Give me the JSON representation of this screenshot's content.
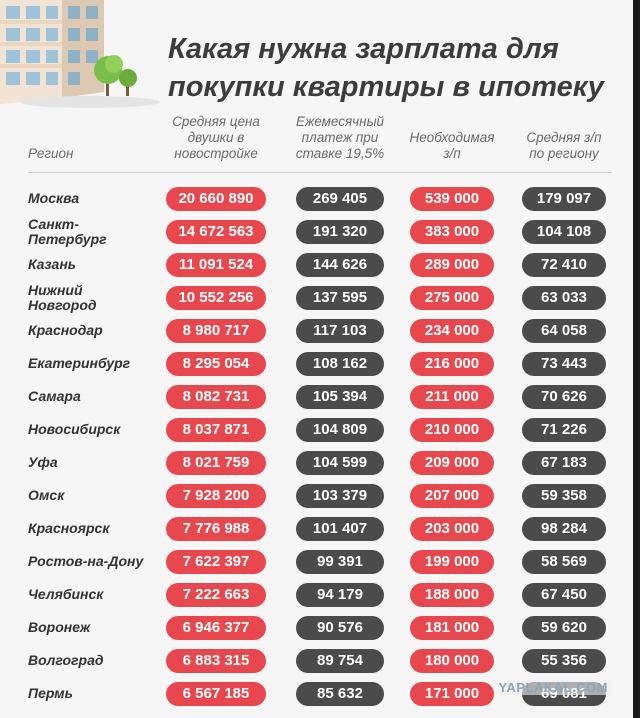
{
  "title_line1": "Какая нужна зарплата для",
  "title_line2": "покупки квартиры в ипотеку",
  "headers": {
    "region": "Регион",
    "price": [
      "Средняя цена",
      "двушки в",
      "новостройке"
    ],
    "payment": [
      "Ежемесячный",
      "платеж при",
      "ставке 19,5%"
    ],
    "required": [
      "Необходимая",
      "з/п"
    ],
    "avg_salary": [
      "Средняя з/п",
      "по региону"
    ]
  },
  "watermark": "YAPLAKAL.COM",
  "colors": {
    "red": "#e8484d",
    "dark": "#4b4b4b",
    "title": "#3c3c3c"
  },
  "chart_data": {
    "type": "table",
    "columns": [
      "Регион",
      "Средняя цена двушки в новостройке",
      "Ежемесячный платеж при ставке 19,5%",
      "Необходимая з/п",
      "Средняя з/п по региону"
    ],
    "rows": [
      {
        "region": [
          "Москва"
        ],
        "price": "20 660 890",
        "payment": "269 405",
        "required": "539 000",
        "avg_salary": "179 097"
      },
      {
        "region": [
          "Санкт-",
          "Петербург"
        ],
        "price": "14 672 563",
        "payment": "191 320",
        "required": "383 000",
        "avg_salary": "104 108"
      },
      {
        "region": [
          "Казань"
        ],
        "price": "11 091 524",
        "payment": "144 626",
        "required": "289 000",
        "avg_salary": "72 410"
      },
      {
        "region": [
          "Нижний",
          "Новгород"
        ],
        "price": "10 552 256",
        "payment": "137 595",
        "required": "275 000",
        "avg_salary": "63 033"
      },
      {
        "region": [
          "Краснодар"
        ],
        "price": "8 980 717",
        "payment": "117 103",
        "required": "234 000",
        "avg_salary": "64 058"
      },
      {
        "region": [
          "Екатеринбург"
        ],
        "price": "8 295 054",
        "payment": "108 162",
        "required": "216 000",
        "avg_salary": "73 443"
      },
      {
        "region": [
          "Самара"
        ],
        "price": "8 082 731",
        "payment": "105 394",
        "required": "211 000",
        "avg_salary": "70 626"
      },
      {
        "region": [
          "Новосибирск"
        ],
        "price": "8 037 871",
        "payment": "104 809",
        "required": "210 000",
        "avg_salary": "71 226"
      },
      {
        "region": [
          "Уфа"
        ],
        "price": "8 021 759",
        "payment": "104 599",
        "required": "209 000",
        "avg_salary": "67 183"
      },
      {
        "region": [
          "Омск"
        ],
        "price": "7 928 200",
        "payment": "103 379",
        "required": "207 000",
        "avg_salary": "59 358"
      },
      {
        "region": [
          "Красноярск"
        ],
        "price": "7 776 988",
        "payment": "101 407",
        "required": "203 000",
        "avg_salary": "98 284"
      },
      {
        "region": [
          "Ростов-на-Дону"
        ],
        "price": "7 622 397",
        "payment": "99 391",
        "required": "199 000",
        "avg_salary": "58 569"
      },
      {
        "region": [
          "Челябинск"
        ],
        "price": "7 222 663",
        "payment": "94 179",
        "required": "188 000",
        "avg_salary": "67 450"
      },
      {
        "region": [
          "Воронеж"
        ],
        "price": "6 946 377",
        "payment": "90 576",
        "required": "181 000",
        "avg_salary": "59 620"
      },
      {
        "region": [
          "Волгоград"
        ],
        "price": "6 883 315",
        "payment": "89 754",
        "required": "180 000",
        "avg_salary": "55 356"
      },
      {
        "region": [
          "Пермь"
        ],
        "price": "6 567 185",
        "payment": "85 632",
        "required": "171 000",
        "avg_salary": "69 081"
      }
    ]
  }
}
